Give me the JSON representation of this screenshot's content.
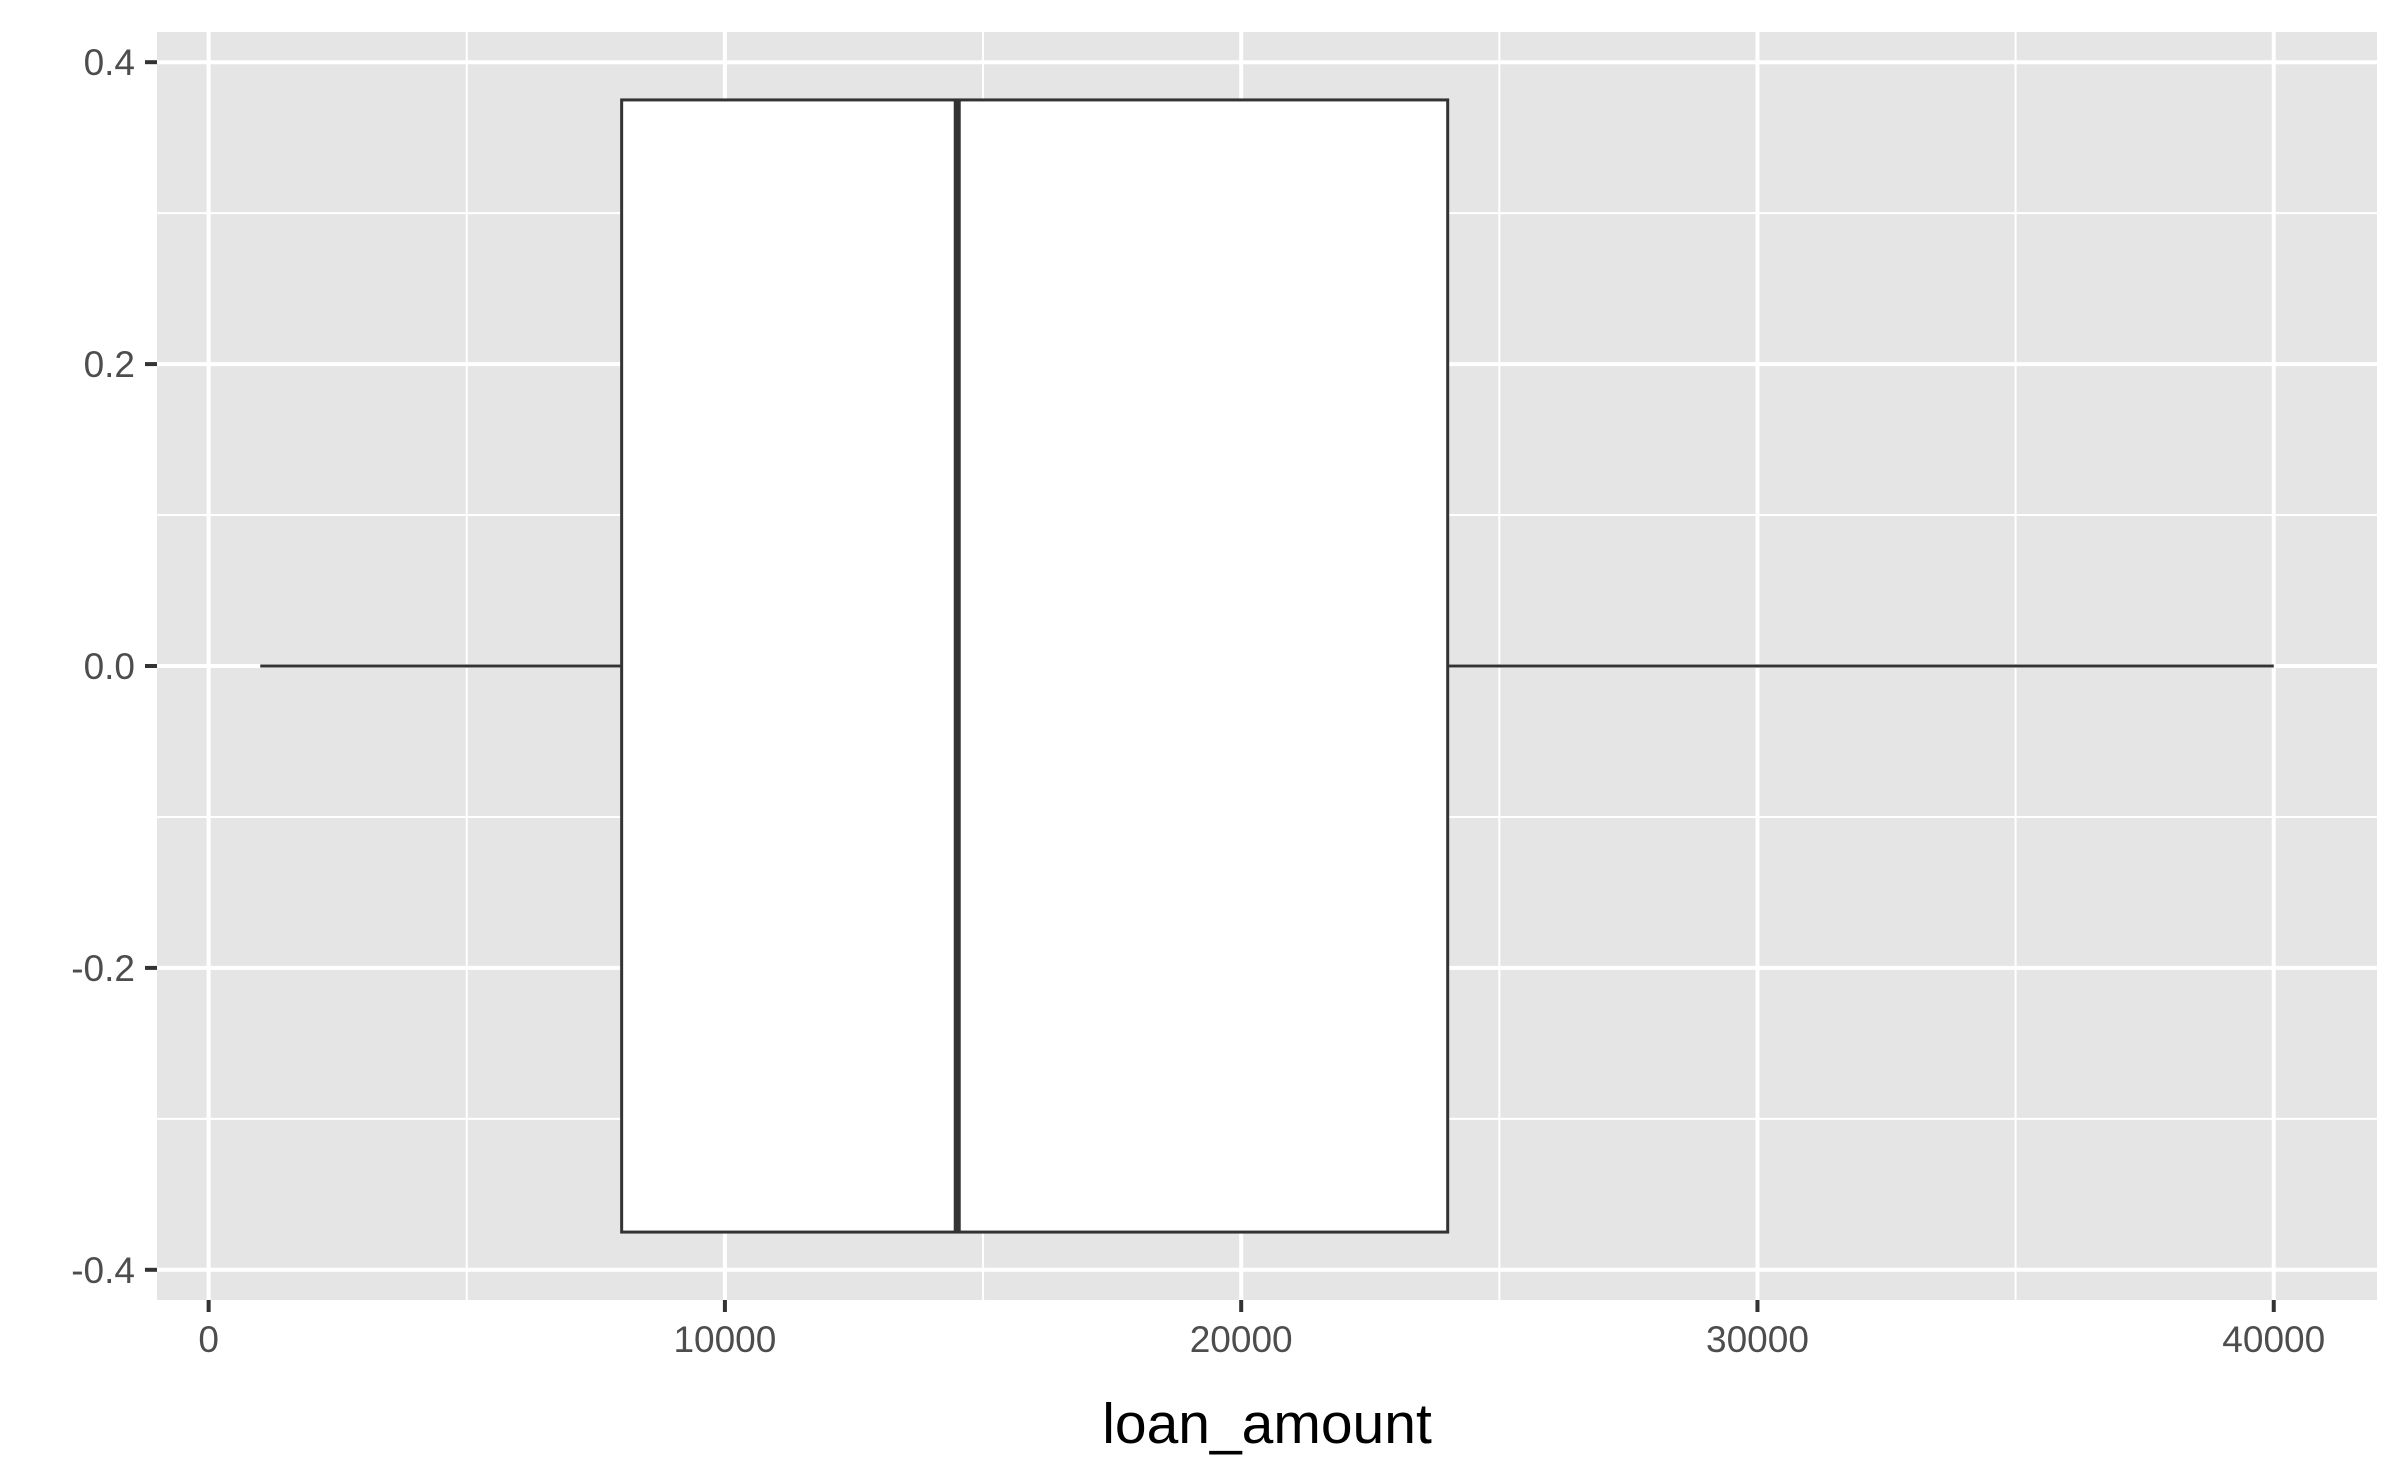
{
  "chart_data": {
    "type": "boxplot",
    "title": "",
    "xlabel": "loan_amount",
    "ylabel": "",
    "xlim": [
      -1000,
      42000
    ],
    "ylim": [
      -0.42,
      0.42
    ],
    "x_ticks": [
      0,
      10000,
      20000,
      30000,
      40000
    ],
    "x_tick_labels": [
      "0",
      "10000",
      "20000",
      "30000",
      "40000"
    ],
    "y_ticks": [
      -0.4,
      -0.2,
      0.0,
      0.2,
      0.4
    ],
    "y_tick_labels": [
      "-0.4",
      "-0.2",
      "0.0",
      "0.2",
      "0.4"
    ],
    "grid": true,
    "box": {
      "whisker_low": 1000,
      "q1": 8000,
      "median": 14500,
      "q3": 24000,
      "whisker_high": 40000,
      "y_center": 0.0,
      "y_half_width": 0.375
    },
    "colors": {
      "panel_background": "#e5e5e5",
      "grid": "#ffffff",
      "box_fill": "#ffffff",
      "box_stroke": "#333333",
      "tick": "#333333",
      "tick_label": "#4d4d4d",
      "axis_title": "#000000"
    }
  }
}
